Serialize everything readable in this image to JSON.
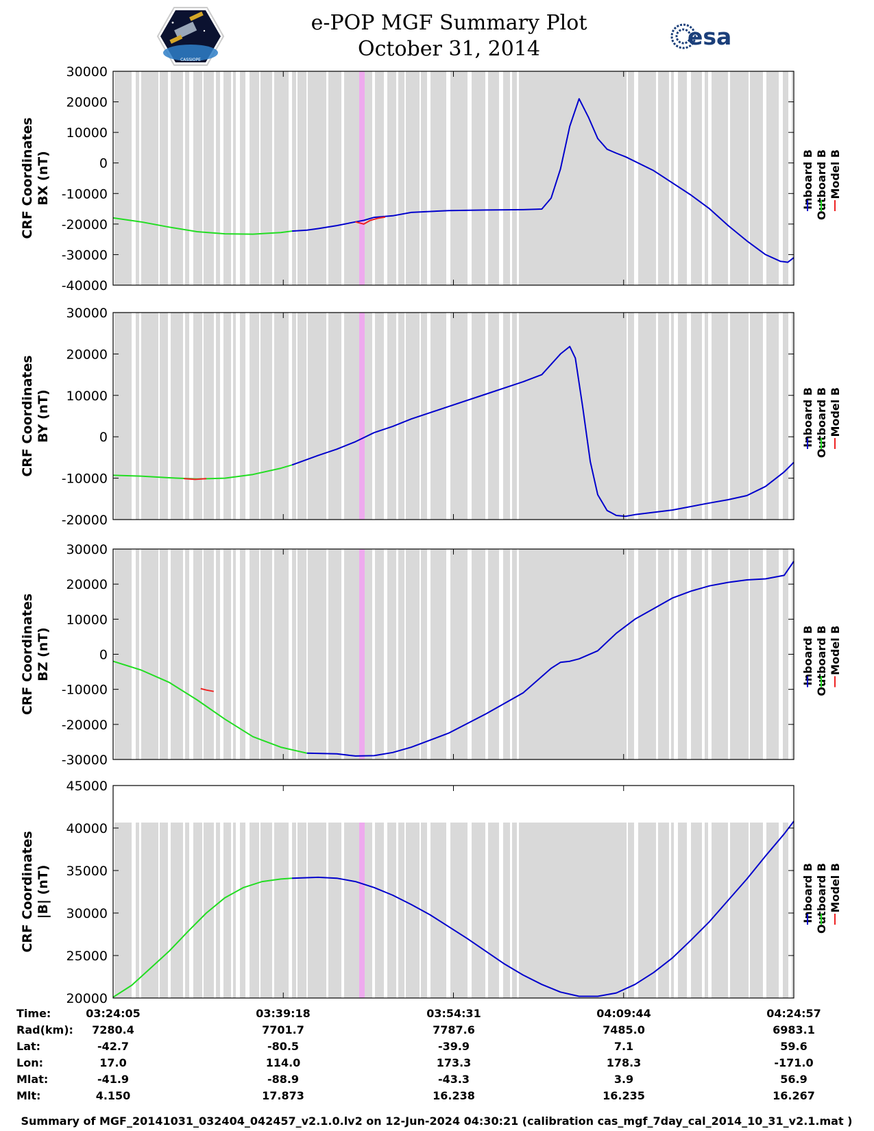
{
  "header": {
    "title_line1": "e-POP MGF Summary Plot",
    "title_line2": "October 31, 2014",
    "left_logo": "cassiope-mission-logo",
    "left_logo_text": "CASSIOPE",
    "right_logo": "esa-logo",
    "right_logo_text": "esa"
  },
  "colors": {
    "inboard": "#0000cc",
    "outboard": "#22dd22",
    "model": "#ee2222",
    "data_gap_shading": "#d9d9d9",
    "highlight_band": "#eeaaee"
  },
  "time_axis": {
    "start_sec": 0,
    "end_sec": 3652,
    "tick_seconds": [
      0,
      913,
      1826,
      2739,
      3652
    ]
  },
  "legend": {
    "labels": [
      "Inboard B",
      "Outboard B",
      "Model B"
    ]
  },
  "chart_data": [
    {
      "type": "line",
      "ylabel_line1": "CRF Coordinates",
      "ylabel_line2": "BX (nT)",
      "ylim": [
        -40000,
        30000
      ],
      "yticks": [
        -40000,
        -30000,
        -20000,
        -10000,
        0,
        10000,
        20000,
        30000
      ],
      "ytick_labels": [
        "-40000",
        "-30000",
        "-20000",
        "-10000",
        "0",
        "10000",
        "20000",
        "30000"
      ],
      "series": [
        {
          "name": "Outboard B",
          "x": [
            0,
            150,
            300,
            450,
            600,
            750,
            900,
            960
          ],
          "values": [
            -18000,
            -19300,
            -21000,
            -22500,
            -23200,
            -23300,
            -22800,
            -22300
          ]
        },
        {
          "name": "Inboard B",
          "x": [
            960,
            1040,
            1100,
            1200,
            1300,
            1345,
            1400,
            1500,
            1600,
            1800,
            2000,
            2200,
            2300,
            2350,
            2400,
            2450,
            2500,
            2550,
            2600,
            2650,
            2700,
            2750,
            2900,
            3000,
            3100,
            3200,
            3300,
            3400,
            3500,
            3580,
            3620,
            3652
          ],
          "values": [
            -22300,
            -22000,
            -21500,
            -20500,
            -19300,
            -18800,
            -17800,
            -17300,
            -16200,
            -15600,
            -15400,
            -15300,
            -15100,
            -11500,
            -2000,
            12000,
            21000,
            15000,
            8000,
            4500,
            3200,
            2000,
            -2500,
            -6500,
            -10500,
            -15000,
            -20500,
            -25500,
            -30000,
            -32200,
            -32500,
            -31000
          ]
        },
        {
          "name": "Model B",
          "x": [
            1300,
            1345,
            1380,
            1420,
            1460
          ],
          "values": [
            -19300,
            -20000,
            -18800,
            -18100,
            -17700
          ]
        }
      ]
    },
    {
      "type": "line",
      "ylabel_line1": "CRF Coordinates",
      "ylabel_line2": "BY (nT)",
      "ylim": [
        -20000,
        30000
      ],
      "yticks": [
        -20000,
        -10000,
        0,
        10000,
        20000,
        30000
      ],
      "ytick_labels": [
        "-20000",
        "-10000",
        "0",
        "10000",
        "20000",
        "30000"
      ],
      "series": [
        {
          "name": "Outboard B",
          "x": [
            0,
            150,
            300,
            450,
            600,
            750,
            900,
            960
          ],
          "values": [
            -9300,
            -9500,
            -9900,
            -10200,
            -10000,
            -9100,
            -7600,
            -6800
          ]
        },
        {
          "name": "Inboard B",
          "x": [
            960,
            1100,
            1200,
            1300,
            1400,
            1500,
            1600,
            1800,
            2000,
            2200,
            2300,
            2400,
            2450,
            2480,
            2520,
            2560,
            2600,
            2650,
            2700,
            2750,
            2800,
            3000,
            3200,
            3300,
            3400,
            3500,
            3600,
            3652
          ],
          "values": [
            -6800,
            -4500,
            -3000,
            -1200,
            1000,
            2500,
            4300,
            7300,
            10300,
            13300,
            15000,
            20000,
            21800,
            19000,
            7000,
            -6000,
            -14000,
            -17800,
            -19000,
            -19200,
            -18800,
            -17700,
            -16000,
            -15200,
            -14200,
            -12000,
            -8500,
            -6200
          ]
        },
        {
          "name": "Model B",
          "x": [
            380,
            440,
            500
          ],
          "values": [
            -10100,
            -10300,
            -10100
          ]
        }
      ]
    },
    {
      "type": "line",
      "ylabel_line1": "CRF Coordinates",
      "ylabel_line2": "BZ (nT)",
      "ylim": [
        -30000,
        30000
      ],
      "yticks": [
        -30000,
        -20000,
        -10000,
        0,
        10000,
        20000,
        30000
      ],
      "ytick_labels": [
        "-30000",
        "-20000",
        "-10000",
        "0",
        "10000",
        "20000",
        "30000"
      ],
      "series": [
        {
          "name": "Outboard B",
          "x": [
            0,
            150,
            300,
            450,
            600,
            750,
            900,
            1040
          ],
          "values": [
            -2000,
            -4500,
            -8000,
            -13000,
            -18500,
            -23500,
            -26500,
            -28200
          ]
        },
        {
          "name": "Inboard B",
          "x": [
            1040,
            1200,
            1300,
            1400,
            1500,
            1600,
            1800,
            2000,
            2200,
            2350,
            2400,
            2450,
            2500,
            2600,
            2700,
            2800,
            2900,
            3000,
            3100,
            3200,
            3300,
            3400,
            3500,
            3600,
            3652
          ],
          "values": [
            -28200,
            -28400,
            -29000,
            -28900,
            -28000,
            -26500,
            -22500,
            -17000,
            -11000,
            -4000,
            -2300,
            -2000,
            -1300,
            1000,
            6000,
            10000,
            13000,
            16000,
            18000,
            19500,
            20500,
            21200,
            21500,
            22500,
            26500
          ]
        },
        {
          "name": "Model B",
          "x": [
            470,
            500,
            540
          ],
          "values": [
            -9800,
            -10200,
            -10600
          ]
        }
      ]
    },
    {
      "type": "line",
      "ylabel_line1": "CRF Coordinates",
      "ylabel_line2": "|B| (nT)",
      "ylim": [
        20000,
        45000
      ],
      "yticks": [
        20000,
        25000,
        30000,
        35000,
        40000,
        45000
      ],
      "ytick_labels": [
        "20000",
        "25000",
        "30000",
        "35000",
        "40000",
        "45000"
      ],
      "series": [
        {
          "name": "Outboard B",
          "x": [
            0,
            100,
            200,
            300,
            400,
            500,
            600,
            700,
            800,
            900,
            960
          ],
          "values": [
            20100,
            21500,
            23500,
            25500,
            27800,
            30000,
            31800,
            33000,
            33700,
            34000,
            34100
          ]
        },
        {
          "name": "Inboard B",
          "x": [
            960,
            1100,
            1200,
            1300,
            1400,
            1500,
            1600,
            1700,
            1800,
            1900,
            2000,
            2100,
            2200,
            2300,
            2400,
            2500,
            2600,
            2700,
            2800,
            2900,
            3000,
            3100,
            3200,
            3300,
            3400,
            3500,
            3600,
            3652
          ],
          "values": [
            34100,
            34200,
            34100,
            33700,
            33000,
            32100,
            31000,
            29800,
            28400,
            27000,
            25500,
            24000,
            22700,
            21600,
            20700,
            20200,
            20200,
            20600,
            21600,
            23000,
            24700,
            26800,
            29000,
            31500,
            34000,
            36700,
            39300,
            40800
          ]
        }
      ]
    }
  ],
  "table": {
    "row_labels": [
      "Time:",
      "Rad(km):",
      "Lat:",
      "Lon:",
      "Mlat:",
      "Mlt:"
    ],
    "columns": [
      [
        "03:24:05",
        "7280.4",
        "-42.7",
        "17.0",
        "-41.9",
        "4.150"
      ],
      [
        "03:39:18",
        "7701.7",
        "-80.5",
        "114.0",
        "-88.9",
        "17.873"
      ],
      [
        "03:54:31",
        "7787.6",
        "-39.9",
        "173.3",
        "-43.3",
        "16.238"
      ],
      [
        "04:09:44",
        "7485.0",
        "7.1",
        "178.3",
        "3.9",
        "16.235"
      ],
      [
        "04:24:57",
        "6983.1",
        "59.6",
        "-171.0",
        "56.9",
        "16.267"
      ]
    ]
  },
  "footer": {
    "text": "Summary of MGF_20141031_032404_042457_v2.1.0.lv2 on 12-Jun-2024 04:30:21 (calibration cas_mgf_7day_cal_2014_10_31_v2.1.mat )"
  }
}
